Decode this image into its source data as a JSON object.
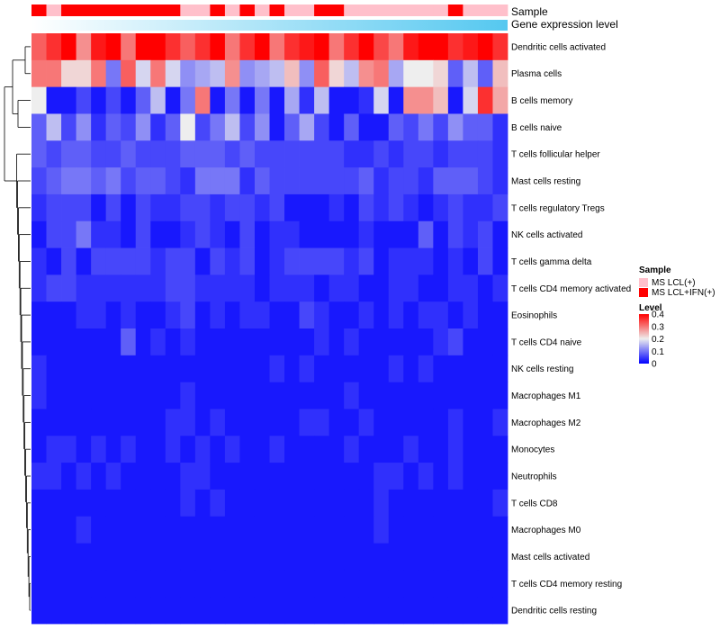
{
  "chart_data": {
    "type": "heatmap",
    "title": "",
    "annotations": {
      "sample_label": "Sample",
      "expression_label": "Gene expression level"
    },
    "sample_groups": [
      "MS LCL+IFN(+)",
      "MS LCL(+)",
      "MS LCL+IFN(+)",
      "MS LCL+IFN(+)",
      "MS LCL+IFN(+)",
      "MS LCL+IFN(+)",
      "MS LCL+IFN(+)",
      "MS LCL+IFN(+)",
      "MS LCL+IFN(+)",
      "MS LCL+IFN(+)",
      "MS LCL(+)",
      "MS LCL(+)",
      "MS LCL+IFN(+)",
      "MS LCL(+)",
      "MS LCL+IFN(+)",
      "MS LCL(+)",
      "MS LCL+IFN(+)",
      "MS LCL(+)",
      "MS LCL(+)",
      "MS LCL+IFN(+)",
      "MS LCL+IFN(+)",
      "MS LCL(+)",
      "MS LCL(+)",
      "MS LCL(+)",
      "MS LCL(+)",
      "MS LCL(+)",
      "MS LCL(+)",
      "MS LCL(+)",
      "MS LCL+IFN(+)",
      "MS LCL(+)",
      "MS LCL(+)",
      "MS LCL(+)"
    ],
    "rows": [
      "Dendritic cells activated",
      "Plasma cells",
      "B cells memory",
      "B cells naive",
      "T cells follicular helper",
      "Mast cells resting",
      "T cells regulatory  Tregs",
      "NK cells activated",
      "T cells gamma delta",
      "T cells CD4 memory activated",
      "Eosinophils",
      "T cells CD4 naive",
      "NK cells resting",
      "Macrophages M1",
      "Macrophages M2",
      "Monocytes",
      "Neutrophils",
      "T cells CD8",
      "Macrophages M0",
      "Mast cells activated",
      "T cells CD4 memory resting",
      "Dendritic cells resting"
    ],
    "values": [
      [
        0.32,
        0.36,
        0.4,
        0.28,
        0.38,
        0.4,
        0.3,
        0.4,
        0.4,
        0.36,
        0.32,
        0.36,
        0.4,
        0.3,
        0.36,
        0.4,
        0.3,
        0.36,
        0.38,
        0.4,
        0.3,
        0.36,
        0.4,
        0.34,
        0.3,
        0.38,
        0.4,
        0.4,
        0.36,
        0.38,
        0.4,
        0.36
      ],
      [
        0.3,
        0.3,
        0.22,
        0.22,
        0.3,
        0.1,
        0.32,
        0.18,
        0.3,
        0.18,
        0.12,
        0.14,
        0.16,
        0.28,
        0.12,
        0.14,
        0.16,
        0.24,
        0.12,
        0.32,
        0.22,
        0.16,
        0.28,
        0.3,
        0.14,
        0.2,
        0.2,
        0.22,
        0.08,
        0.16,
        0.08,
        0.24
      ],
      [
        0.2,
        0.02,
        0.02,
        0.06,
        0.02,
        0.06,
        0.02,
        0.08,
        0.16,
        0.02,
        0.1,
        0.3,
        0.02,
        0.1,
        0.02,
        0.1,
        0.02,
        0.14,
        0.04,
        0.16,
        0.02,
        0.02,
        0.04,
        0.18,
        0.02,
        0.28,
        0.28,
        0.24,
        0.02,
        0.18,
        0.36,
        0.26
      ],
      [
        0.08,
        0.16,
        0.06,
        0.12,
        0.04,
        0.08,
        0.06,
        0.12,
        0.04,
        0.08,
        0.2,
        0.06,
        0.1,
        0.16,
        0.06,
        0.12,
        0.02,
        0.08,
        0.14,
        0.06,
        0.02,
        0.08,
        0.02,
        0.02,
        0.08,
        0.06,
        0.1,
        0.06,
        0.12,
        0.08,
        0.08,
        0.04
      ],
      [
        0.08,
        0.06,
        0.08,
        0.08,
        0.06,
        0.06,
        0.08,
        0.06,
        0.06,
        0.06,
        0.08,
        0.08,
        0.08,
        0.06,
        0.08,
        0.06,
        0.06,
        0.06,
        0.06,
        0.06,
        0.06,
        0.04,
        0.04,
        0.06,
        0.04,
        0.06,
        0.06,
        0.04,
        0.06,
        0.06,
        0.06,
        0.04
      ],
      [
        0.06,
        0.08,
        0.1,
        0.1,
        0.08,
        0.1,
        0.06,
        0.08,
        0.08,
        0.06,
        0.04,
        0.1,
        0.1,
        0.1,
        0.04,
        0.08,
        0.06,
        0.06,
        0.06,
        0.06,
        0.06,
        0.06,
        0.08,
        0.04,
        0.06,
        0.06,
        0.04,
        0.08,
        0.08,
        0.08,
        0.06,
        0.04
      ],
      [
        0.04,
        0.06,
        0.06,
        0.06,
        0.02,
        0.06,
        0.02,
        0.06,
        0.04,
        0.04,
        0.06,
        0.06,
        0.04,
        0.06,
        0.06,
        0.04,
        0.06,
        0.02,
        0.02,
        0.02,
        0.04,
        0.02,
        0.06,
        0.04,
        0.06,
        0.04,
        0.02,
        0.04,
        0.06,
        0.04,
        0.04,
        0.06
      ],
      [
        0.02,
        0.06,
        0.06,
        0.1,
        0.04,
        0.04,
        0.02,
        0.06,
        0.02,
        0.02,
        0.04,
        0.06,
        0.04,
        0.02,
        0.06,
        0.02,
        0.04,
        0.04,
        0.02,
        0.02,
        0.02,
        0.02,
        0.04,
        0.02,
        0.02,
        0.02,
        0.08,
        0.02,
        0.06,
        0.04,
        0.06,
        0.02
      ],
      [
        0.04,
        0.02,
        0.06,
        0.02,
        0.06,
        0.06,
        0.06,
        0.06,
        0.04,
        0.06,
        0.06,
        0.02,
        0.06,
        0.04,
        0.06,
        0.02,
        0.04,
        0.06,
        0.06,
        0.06,
        0.06,
        0.04,
        0.06,
        0.02,
        0.04,
        0.04,
        0.04,
        0.02,
        0.04,
        0.02,
        0.06,
        0.02
      ],
      [
        0.04,
        0.06,
        0.06,
        0.04,
        0.04,
        0.04,
        0.04,
        0.04,
        0.04,
        0.06,
        0.06,
        0.04,
        0.04,
        0.04,
        0.04,
        0.02,
        0.04,
        0.04,
        0.04,
        0.02,
        0.04,
        0.04,
        0.02,
        0.02,
        0.04,
        0.04,
        0.02,
        0.02,
        0.04,
        0.04,
        0.02,
        0.04
      ],
      [
        0.02,
        0.02,
        0.02,
        0.04,
        0.04,
        0.02,
        0.04,
        0.02,
        0.02,
        0.04,
        0.06,
        0.02,
        0.04,
        0.02,
        0.04,
        0.04,
        0.02,
        0.02,
        0.06,
        0.04,
        0.02,
        0.02,
        0.04,
        0.02,
        0.04,
        0.02,
        0.04,
        0.04,
        0.02,
        0.04,
        0.02,
        0.02
      ],
      [
        0.02,
        0.02,
        0.02,
        0.02,
        0.02,
        0.02,
        0.08,
        0.02,
        0.04,
        0.02,
        0.04,
        0.02,
        0.02,
        0.02,
        0.02,
        0.02,
        0.02,
        0.02,
        0.02,
        0.04,
        0.02,
        0.04,
        0.02,
        0.02,
        0.02,
        0.02,
        0.02,
        0.04,
        0.06,
        0.02,
        0.02,
        0.02
      ],
      [
        0.04,
        0.02,
        0.02,
        0.02,
        0.02,
        0.02,
        0.02,
        0.02,
        0.02,
        0.02,
        0.02,
        0.02,
        0.02,
        0.02,
        0.02,
        0.02,
        0.04,
        0.02,
        0.04,
        0.02,
        0.02,
        0.02,
        0.02,
        0.02,
        0.04,
        0.02,
        0.04,
        0.02,
        0.02,
        0.02,
        0.02,
        0.02
      ],
      [
        0.04,
        0.02,
        0.02,
        0.02,
        0.02,
        0.02,
        0.02,
        0.02,
        0.02,
        0.02,
        0.04,
        0.02,
        0.02,
        0.02,
        0.02,
        0.02,
        0.02,
        0.02,
        0.02,
        0.02,
        0.02,
        0.04,
        0.02,
        0.02,
        0.02,
        0.02,
        0.02,
        0.02,
        0.02,
        0.02,
        0.02,
        0.02
      ],
      [
        0.02,
        0.02,
        0.02,
        0.02,
        0.02,
        0.02,
        0.02,
        0.02,
        0.02,
        0.04,
        0.04,
        0.02,
        0.04,
        0.02,
        0.02,
        0.02,
        0.02,
        0.02,
        0.04,
        0.04,
        0.02,
        0.02,
        0.04,
        0.02,
        0.02,
        0.02,
        0.02,
        0.02,
        0.04,
        0.02,
        0.02,
        0.04
      ],
      [
        0.02,
        0.04,
        0.04,
        0.02,
        0.04,
        0.02,
        0.04,
        0.02,
        0.02,
        0.04,
        0.02,
        0.04,
        0.02,
        0.04,
        0.02,
        0.02,
        0.04,
        0.02,
        0.02,
        0.02,
        0.02,
        0.04,
        0.02,
        0.02,
        0.02,
        0.04,
        0.02,
        0.02,
        0.04,
        0.02,
        0.02,
        0.02
      ],
      [
        0.04,
        0.04,
        0.02,
        0.04,
        0.02,
        0.04,
        0.02,
        0.02,
        0.02,
        0.02,
        0.04,
        0.04,
        0.02,
        0.02,
        0.02,
        0.02,
        0.02,
        0.02,
        0.02,
        0.02,
        0.02,
        0.02,
        0.02,
        0.04,
        0.04,
        0.02,
        0.04,
        0.02,
        0.04,
        0.02,
        0.02,
        0.02
      ],
      [
        0.02,
        0.02,
        0.02,
        0.02,
        0.02,
        0.02,
        0.02,
        0.02,
        0.02,
        0.02,
        0.04,
        0.02,
        0.04,
        0.02,
        0.02,
        0.02,
        0.02,
        0.02,
        0.02,
        0.02,
        0.02,
        0.02,
        0.02,
        0.04,
        0.02,
        0.02,
        0.02,
        0.02,
        0.02,
        0.02,
        0.02,
        0.04
      ],
      [
        0.02,
        0.02,
        0.02,
        0.04,
        0.02,
        0.02,
        0.02,
        0.02,
        0.02,
        0.02,
        0.02,
        0.02,
        0.02,
        0.02,
        0.02,
        0.02,
        0.02,
        0.02,
        0.02,
        0.02,
        0.02,
        0.02,
        0.02,
        0.04,
        0.02,
        0.02,
        0.02,
        0.02,
        0.02,
        0.02,
        0.02,
        0.02
      ],
      [
        0.02,
        0.02,
        0.02,
        0.02,
        0.02,
        0.02,
        0.02,
        0.02,
        0.02,
        0.02,
        0.02,
        0.02,
        0.02,
        0.02,
        0.02,
        0.02,
        0.02,
        0.02,
        0.02,
        0.02,
        0.02,
        0.02,
        0.02,
        0.02,
        0.02,
        0.02,
        0.02,
        0.02,
        0.02,
        0.02,
        0.02,
        0.02
      ],
      [
        0.02,
        0.02,
        0.02,
        0.02,
        0.02,
        0.02,
        0.02,
        0.02,
        0.02,
        0.02,
        0.02,
        0.02,
        0.02,
        0.02,
        0.02,
        0.02,
        0.02,
        0.02,
        0.02,
        0.02,
        0.02,
        0.02,
        0.02,
        0.02,
        0.02,
        0.02,
        0.02,
        0.02,
        0.02,
        0.02,
        0.02,
        0.02
      ],
      [
        0.02,
        0.02,
        0.02,
        0.02,
        0.02,
        0.02,
        0.02,
        0.02,
        0.02,
        0.02,
        0.02,
        0.02,
        0.02,
        0.02,
        0.02,
        0.02,
        0.02,
        0.02,
        0.02,
        0.02,
        0.02,
        0.02,
        0.02,
        0.02,
        0.02,
        0.02,
        0.02,
        0.02,
        0.02,
        0.02,
        0.02,
        0.02
      ]
    ],
    "color_scale": {
      "min": 0,
      "max": 0.4,
      "stops": [
        {
          "value": 0,
          "color": "#0000ff"
        },
        {
          "value": 0.2,
          "color": "#eeeeee"
        },
        {
          "value": 0.4,
          "color": "#ff0000"
        }
      ]
    },
    "legend": {
      "sample": {
        "title": "Sample",
        "entries": [
          {
            "label": "MS LCL(+)",
            "color": "#ffc0cb"
          },
          {
            "label": "MS LCL+IFN(+)",
            "color": "#ff0000"
          }
        ]
      },
      "level": {
        "title": "Level",
        "ticks": [
          "0",
          "0.1",
          "0.2",
          "0.3",
          "0.4"
        ],
        "tick_values": [
          0,
          0.1,
          0.2,
          0.3,
          0.4
        ]
      }
    },
    "expression_bar": {
      "start_color": "#ffffff",
      "end_color": "#55c8f0"
    }
  }
}
